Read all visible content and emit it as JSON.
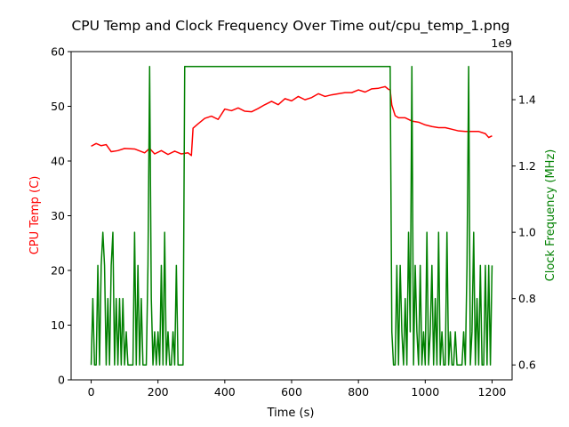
{
  "chart_data": {
    "type": "line",
    "title": "CPU Temp and Clock Frequency Over Time out/cpu_temp_1.png",
    "xlabel": "Time (s)",
    "ylabel_left": "CPU Temp (C)",
    "ylabel_right": "Clock Frequency (MHz)",
    "right_axis_offset_text": "1e9",
    "xlim": [
      -60,
      1260
    ],
    "ylim_left": [
      0,
      60
    ],
    "ylim_right": [
      0.555,
      1.545
    ],
    "x_ticks": [
      0,
      200,
      400,
      600,
      800,
      1000,
      1200
    ],
    "x_tick_labels": [
      "0",
      "200",
      "400",
      "600",
      "800",
      "1000",
      "1200"
    ],
    "y_left_ticks": [
      0,
      10,
      20,
      30,
      40,
      50,
      60
    ],
    "y_left_tick_labels": [
      "0",
      "10",
      "20",
      "30",
      "40",
      "50",
      "60"
    ],
    "y_right_ticks": [
      0.6,
      0.8,
      1.0,
      1.2,
      1.4
    ],
    "y_right_tick_labels": [
      "0.6",
      "0.8",
      "1.0",
      "1.2",
      "1.4"
    ],
    "colors": {
      "temp": "#ff0000",
      "freq": "#008000",
      "left_label": "#ff0000",
      "right_label": "#008000"
    },
    "grid": false,
    "series": [
      {
        "axis": "left",
        "color": "#ff0000",
        "x": [
          0,
          15,
          30,
          45,
          60,
          80,
          100,
          130,
          160,
          175,
          190,
          210,
          230,
          250,
          270,
          290,
          300,
          305,
          320,
          340,
          360,
          380,
          400,
          420,
          440,
          460,
          480,
          500,
          520,
          540,
          560,
          580,
          600,
          620,
          640,
          660,
          680,
          700,
          720,
          740,
          760,
          780,
          800,
          820,
          840,
          860,
          880,
          890,
          895,
          900,
          910,
          920,
          940,
          960,
          980,
          1000,
          1020,
          1040,
          1060,
          1080,
          1100,
          1120,
          1140,
          1160,
          1180,
          1190,
          1200
        ],
        "y": [
          42.7,
          43.2,
          42.8,
          43.0,
          41.7,
          41.9,
          42.3,
          42.2,
          41.5,
          42.3,
          41.3,
          41.9,
          41.2,
          41.8,
          41.3,
          41.5,
          41.0,
          46.0,
          46.8,
          47.8,
          48.2,
          47.6,
          49.5,
          49.2,
          49.7,
          49.1,
          49.0,
          49.6,
          50.3,
          50.9,
          50.3,
          51.4,
          51.0,
          51.8,
          51.2,
          51.6,
          52.3,
          51.8,
          52.1,
          52.3,
          52.5,
          52.5,
          53.0,
          52.6,
          53.2,
          53.3,
          53.6,
          53.1,
          53.0,
          50.2,
          48.3,
          47.9,
          47.9,
          47.3,
          47.1,
          46.6,
          46.3,
          46.1,
          46.1,
          45.8,
          45.5,
          45.4,
          45.4,
          45.4,
          45.0,
          44.3,
          44.6
        ]
      },
      {
        "axis": "right",
        "color": "#008000",
        "x": [
          0,
          5,
          10,
          15,
          20,
          25,
          30,
          35,
          40,
          45,
          50,
          55,
          60,
          65,
          70,
          75,
          80,
          85,
          90,
          95,
          100,
          105,
          110,
          115,
          120,
          125,
          130,
          135,
          140,
          145,
          150,
          155,
          160,
          165,
          170,
          175,
          180,
          185,
          190,
          195,
          200,
          205,
          210,
          215,
          220,
          225,
          230,
          235,
          240,
          245,
          250,
          255,
          260,
          265,
          270,
          275,
          280,
          285,
          290,
          295,
          300,
          305,
          310,
          895,
          900,
          905,
          910,
          915,
          920,
          925,
          930,
          935,
          940,
          945,
          950,
          955,
          960,
          965,
          970,
          975,
          980,
          985,
          990,
          995,
          1000,
          1005,
          1010,
          1015,
          1020,
          1025,
          1030,
          1035,
          1040,
          1045,
          1050,
          1055,
          1060,
          1065,
          1070,
          1075,
          1080,
          1085,
          1090,
          1095,
          1100,
          1105,
          1110,
          1115,
          1120,
          1125,
          1130,
          1135,
          1140,
          1145,
          1150,
          1155,
          1160,
          1165,
          1170,
          1175,
          1180,
          1185,
          1190,
          1195,
          1200
        ],
        "y": [
          0.6,
          0.8,
          0.6,
          0.6,
          0.9,
          0.6,
          0.9,
          1.0,
          0.9,
          0.6,
          0.8,
          0.6,
          0.9,
          1.0,
          0.6,
          0.8,
          0.6,
          0.8,
          0.6,
          0.8,
          0.6,
          0.7,
          0.6,
          0.6,
          0.6,
          0.6,
          1.0,
          0.6,
          0.9,
          0.6,
          0.8,
          0.6,
          0.6,
          0.6,
          0.9,
          1.5,
          0.8,
          0.6,
          0.7,
          0.6,
          0.7,
          0.6,
          0.9,
          0.6,
          1.0,
          0.6,
          0.7,
          0.6,
          0.6,
          0.7,
          0.6,
          0.9,
          0.6,
          0.6,
          0.6,
          0.6,
          1.5,
          1.5,
          1.5,
          1.5,
          1.5,
          1.5,
          1.5,
          1.5,
          0.7,
          0.6,
          0.6,
          0.9,
          0.6,
          0.9,
          0.7,
          0.6,
          0.8,
          0.6,
          1.0,
          0.7,
          1.5,
          0.6,
          0.9,
          0.7,
          0.6,
          0.9,
          0.6,
          0.7,
          0.6,
          1.0,
          0.6,
          0.7,
          0.9,
          0.6,
          0.8,
          0.6,
          1.0,
          0.6,
          0.7,
          0.6,
          0.6,
          1.0,
          0.6,
          0.7,
          0.6,
          0.6,
          0.7,
          0.6,
          0.6,
          0.6,
          0.6,
          0.7,
          0.6,
          0.9,
          1.5,
          0.6,
          0.7,
          1.0,
          0.6,
          0.8,
          0.6,
          0.9,
          0.6,
          0.6,
          0.9,
          0.6,
          0.9,
          0.6,
          0.9
        ]
      }
    ]
  }
}
